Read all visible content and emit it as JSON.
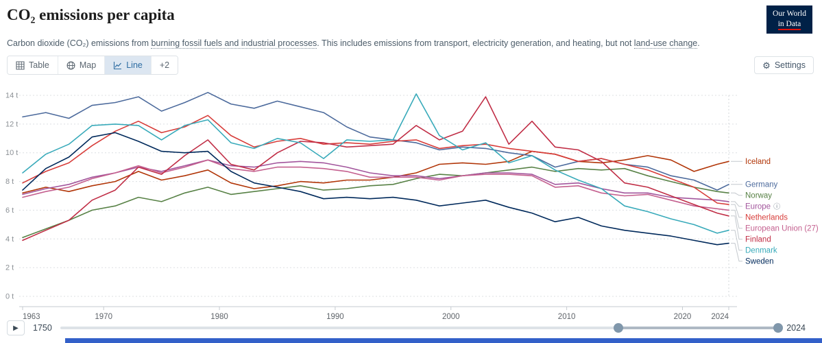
{
  "header": {
    "title": "CO₂ emissions per capita",
    "subtitle": {
      "part1": "Carbon dioxide (CO₂) emissions from ",
      "link1": "burning fossil fuels and industrial processes",
      "part2": ". This includes emissions from transport, electricity generation, and heating, but not ",
      "link2": "land-use change",
      "part3": "."
    },
    "logo": {
      "line1": "Our World",
      "line2": "in Data"
    }
  },
  "controls": {
    "tabs": [
      {
        "label": "Table",
        "icon": "table-icon",
        "selected": false
      },
      {
        "label": "Map",
        "icon": "globe-icon",
        "selected": false
      },
      {
        "label": "Line",
        "icon": "line-chart-icon",
        "selected": true
      },
      {
        "label": "+2",
        "selected": false
      }
    ],
    "settings_label": "Settings"
  },
  "timeline": {
    "range_start_label": "1750",
    "range_end_label": "2024",
    "range_start_year": 1750,
    "range_end_year": 2024,
    "selected_start_year": 1963,
    "selected_end_year": 2024
  },
  "colors": {
    "accent": "#2d6ca2",
    "tab_selected_bg": "#dce6f1",
    "logo_bg": "#002147",
    "logo_red": "#E3120B",
    "bottom_bar": "#3360C9"
  },
  "chart_data": {
    "type": "line",
    "title": "CO₂ emissions per capita",
    "unit": "t",
    "x_range": [
      1963,
      2024
    ],
    "ylim": [
      0,
      14
    ],
    "yticks": [
      0,
      2,
      4,
      6,
      8,
      10,
      12,
      14
    ],
    "ytick_labels": [
      "0 t",
      "2 t",
      "4 t",
      "6 t",
      "8 t",
      "10 t",
      "12 t",
      "14 t"
    ],
    "xticks": [
      1963,
      1970,
      1980,
      1990,
      2000,
      2010,
      2020,
      2024
    ],
    "grid": "dashed-horizontal",
    "legend_position": "right-entity-labels",
    "x": [
      1963,
      1965,
      1967,
      1969,
      1971,
      1973,
      1975,
      1977,
      1979,
      1981,
      1983,
      1985,
      1987,
      1989,
      1991,
      1993,
      1995,
      1997,
      1999,
      2001,
      2003,
      2005,
      2007,
      2009,
      2011,
      2013,
      2015,
      2017,
      2019,
      2021,
      2023,
      2024
    ],
    "series": [
      {
        "name": "Iceland",
        "color": "#B13507",
        "values": [
          7.2,
          7.6,
          7.3,
          7.7,
          8.0,
          8.7,
          8.1,
          8.4,
          8.8,
          7.9,
          7.5,
          7.7,
          8.0,
          7.9,
          8.1,
          8.1,
          8.3,
          8.6,
          9.2,
          9.3,
          9.2,
          9.4,
          10.1,
          9.9,
          9.4,
          9.3,
          9.5,
          9.8,
          9.5,
          8.7,
          9.2,
          9.4
        ]
      },
      {
        "name": "Germany",
        "color": "#4C6A9C",
        "values": [
          12.5,
          12.8,
          12.4,
          13.3,
          13.5,
          13.9,
          12.9,
          13.5,
          14.2,
          13.4,
          13.1,
          13.6,
          13.2,
          12.8,
          11.8,
          11.1,
          10.9,
          10.7,
          10.2,
          10.4,
          10.3,
          10.0,
          9.8,
          9.0,
          9.4,
          9.6,
          9.2,
          9.0,
          8.4,
          8.1,
          7.4,
          7.8
        ]
      },
      {
        "name": "Norway",
        "color": "#578145",
        "values": [
          4.1,
          4.7,
          5.3,
          6.0,
          6.3,
          6.9,
          6.6,
          7.2,
          7.6,
          7.1,
          7.3,
          7.5,
          7.7,
          7.4,
          7.5,
          7.7,
          7.8,
          8.2,
          8.5,
          8.4,
          8.6,
          8.8,
          9.0,
          8.7,
          8.9,
          8.8,
          8.9,
          8.4,
          8.0,
          7.6,
          7.3,
          7.2
        ]
      },
      {
        "name": "Europe",
        "color": "#A2559C",
        "info_icon": true,
        "values": [
          7.1,
          7.5,
          7.8,
          8.3,
          8.6,
          9.0,
          8.7,
          9.1,
          9.5,
          9.1,
          9.0,
          9.3,
          9.4,
          9.3,
          9.0,
          8.6,
          8.4,
          8.4,
          8.2,
          8.4,
          8.6,
          8.6,
          8.5,
          7.8,
          7.9,
          7.5,
          7.2,
          7.2,
          6.9,
          6.8,
          6.7,
          6.6
        ]
      },
      {
        "name": "Netherlands",
        "color": "#D73C39",
        "values": [
          7.9,
          8.7,
          9.3,
          10.5,
          11.5,
          12.2,
          11.4,
          11.8,
          12.6,
          11.2,
          10.4,
          10.8,
          11.0,
          10.6,
          10.7,
          10.6,
          10.8,
          10.9,
          10.3,
          10.5,
          10.6,
          10.3,
          10.1,
          9.9,
          9.4,
          9.6,
          9.2,
          8.8,
          8.2,
          7.6,
          6.5,
          6.4
        ]
      },
      {
        "name": "European Union (27)",
        "color": "#C4608F",
        "values": [
          6.9,
          7.3,
          7.6,
          8.2,
          8.6,
          9.1,
          8.6,
          9.0,
          9.5,
          8.9,
          8.7,
          9.0,
          9.0,
          8.9,
          8.7,
          8.3,
          8.3,
          8.3,
          8.1,
          8.4,
          8.5,
          8.5,
          8.4,
          7.6,
          7.7,
          7.2,
          7.0,
          7.1,
          6.7,
          6.3,
          6.1,
          6.0
        ]
      },
      {
        "name": "Finland",
        "color": "#C02D45",
        "values": [
          3.9,
          4.6,
          5.3,
          6.7,
          7.4,
          9.0,
          8.5,
          9.8,
          10.9,
          9.2,
          8.8,
          10.0,
          10.8,
          10.7,
          10.4,
          10.5,
          10.6,
          11.9,
          10.9,
          11.5,
          13.9,
          10.6,
          12.2,
          10.4,
          10.2,
          9.4,
          7.9,
          7.6,
          7.0,
          6.4,
          5.8,
          5.6
        ]
      },
      {
        "name": "Denmark",
        "color": "#38AABA",
        "values": [
          8.6,
          9.9,
          10.6,
          11.9,
          12.0,
          11.9,
          10.9,
          11.9,
          12.3,
          10.7,
          10.3,
          11.0,
          10.7,
          9.6,
          10.9,
          10.8,
          10.9,
          14.1,
          11.2,
          10.2,
          10.7,
          9.3,
          9.8,
          8.8,
          8.1,
          7.5,
          6.3,
          5.9,
          5.4,
          5.0,
          4.4,
          4.6
        ]
      },
      {
        "name": "Sweden",
        "color": "#00295B",
        "values": [
          7.4,
          8.9,
          9.7,
          11.1,
          11.4,
          10.8,
          10.1,
          10.0,
          10.1,
          8.7,
          7.9,
          7.6,
          7.3,
          6.8,
          6.9,
          6.8,
          6.9,
          6.7,
          6.3,
          6.5,
          6.7,
          6.2,
          5.8,
          5.2,
          5.5,
          4.9,
          4.6,
          4.4,
          4.2,
          3.9,
          3.6,
          3.7
        ]
      }
    ]
  }
}
